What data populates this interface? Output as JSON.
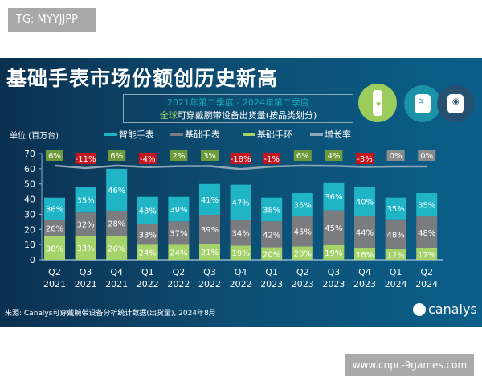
{
  "watermark_top": "TG: MYYJJPP",
  "watermark_bottom": "www.cnpc-9games.com",
  "header": {
    "title": "基础手表市场份额创历史新高",
    "subtitle_line1": "2021年第二季度 - 2024年第二季度",
    "subtitle_line2_prefix": "全球",
    "subtitle_line2_rest": "可穿戴腕带设备出货量(按品类划分)",
    "icons": [
      "fitness-band-icon",
      "smartwatch-wifi-icon",
      "smartwatch-location-icon"
    ]
  },
  "footer": {
    "source": "来源: Canalys可穿戴腕带设备分析统计数据(出货量), 2024年8月",
    "logo_text": "canalys"
  },
  "colors": {
    "smart_watch": "#1fb5c6",
    "basic_watch": "#7b7c7f",
    "basic_band": "#a5d36a",
    "growth_positive": "#6f9a3c",
    "growth_negative": "#c3161f",
    "growth_zero": "#8c8c8c",
    "growth_line": "#8ea6b6"
  },
  "chart_data": {
    "type": "bar",
    "stacked": true,
    "unit_label": "单位 (百万台)",
    "ylim": [
      0,
      70
    ],
    "yticks": [
      0,
      10,
      20,
      30,
      40,
      50,
      60,
      70
    ],
    "grid": false,
    "legend_position": "top",
    "categories": [
      {
        "quarter": "Q2",
        "year": "2021"
      },
      {
        "quarter": "Q3",
        "year": "2021"
      },
      {
        "quarter": "Q4",
        "year": "2021"
      },
      {
        "quarter": "Q1",
        "year": "2022"
      },
      {
        "quarter": "Q2",
        "year": "2022"
      },
      {
        "quarter": "Q3",
        "year": "2022"
      },
      {
        "quarter": "Q4",
        "year": "2022"
      },
      {
        "quarter": "Q1",
        "year": "2023"
      },
      {
        "quarter": "Q2",
        "year": "2023"
      },
      {
        "quarter": "Q3",
        "year": "2023"
      },
      {
        "quarter": "Q4",
        "year": "2023"
      },
      {
        "quarter": "Q1",
        "year": "2024"
      },
      {
        "quarter": "Q2",
        "year": "2024"
      }
    ],
    "totals": [
      41,
      48,
      60,
      41.5,
      41.5,
      49.5,
      49.5,
      41,
      44,
      51,
      48,
      41,
      44
    ],
    "series": [
      {
        "name": "基础手环",
        "key": "basic_band",
        "share_labels": [
          "38%",
          "33%",
          "26%",
          "24%",
          "24%",
          "21%",
          "19%",
          "20%",
          "20%",
          "19%",
          "16%",
          "17%",
          "17%"
        ]
      },
      {
        "name": "基础手表",
        "key": "basic_watch",
        "share_labels": [
          "26%",
          "32%",
          "28%",
          "33%",
          "37%",
          "39%",
          "34%",
          "42%",
          "45%",
          "45%",
          "44%",
          "48%",
          "48%"
        ]
      },
      {
        "name": "智能手表",
        "key": "smart_watch",
        "share_labels": [
          "36%",
          "35%",
          "46%",
          "43%",
          "39%",
          "41%",
          "47%",
          "38%",
          "35%",
          "36%",
          "40%",
          "35%",
          "35%"
        ]
      }
    ],
    "growth": {
      "name": "增长率",
      "labels": [
        "6%",
        "-11%",
        "6%",
        "-4%",
        "2%",
        "3%",
        "-18%",
        "-1%",
        "6%",
        "4%",
        "-3%",
        "0%",
        "0%"
      ],
      "values": [
        6,
        -11,
        6,
        -4,
        2,
        3,
        -18,
        -1,
        6,
        4,
        -3,
        0,
        0
      ]
    }
  }
}
